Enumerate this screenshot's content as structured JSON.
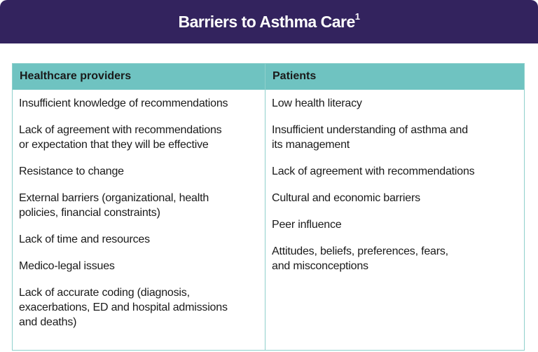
{
  "title": "Barriers to Asthma Care",
  "title_superscript": "1",
  "table": {
    "headers": [
      "Healthcare providers",
      "Patients"
    ],
    "providers": [
      "Insufficient knowledge of recommendations",
      "Lack of agreement with recommendations\nor expectation that they will be effective",
      "Resistance to change",
      "External barriers (organizational, health\npolicies, financial constraints)",
      "Lack of time and resources",
      "Medico-legal issues",
      "Lack of accurate coding (diagnosis,\nexacerbations, ED and hospital admissions\nand deaths)"
    ],
    "patients": [
      "Low health literacy",
      "Insufficient understanding of asthma and\nits management",
      "Lack of agreement with recommendations",
      "Cultural and economic barriers",
      "Peer influence",
      "Attitudes, beliefs, preferences, fears,\nand misconceptions"
    ]
  },
  "colors": {
    "banner": "#33235e",
    "header_row": "#6fc3c1",
    "border": "#8fd0cc"
  }
}
